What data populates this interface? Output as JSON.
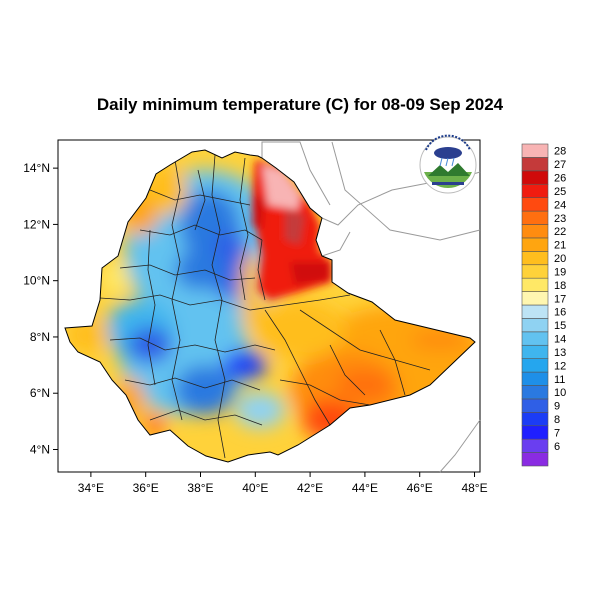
{
  "title": "Daily minimum temperature (C) for 08-09 Sep 2024",
  "x_ticks": [
    {
      "lon": 34,
      "label": "34°E"
    },
    {
      "lon": 36,
      "label": "36°E"
    },
    {
      "lon": 38,
      "label": "38°E"
    },
    {
      "lon": 40,
      "label": "40°E"
    },
    {
      "lon": 42,
      "label": "42°E"
    },
    {
      "lon": 44,
      "label": "44°E"
    },
    {
      "lon": 46,
      "label": "46°E"
    },
    {
      "lon": 48,
      "label": "48°E"
    }
  ],
  "y_ticks": [
    {
      "lat": 14,
      "label": "14°N"
    },
    {
      "lat": 12,
      "label": "12°N"
    },
    {
      "lat": 10,
      "label": "10°N"
    },
    {
      "lat": 8,
      "label": "8°N"
    },
    {
      "lat": 6,
      "label": "6°N"
    },
    {
      "lat": 4,
      "label": "4°N"
    }
  ],
  "extent": {
    "lon_min": 32.8,
    "lon_max": 48.2,
    "lat_min": 3.2,
    "lat_max": 15.0
  },
  "colorbar": {
    "levels": [
      {
        "label": "",
        "color": "#8a2be2"
      },
      {
        "label": "6",
        "color": "#6a3ef0"
      },
      {
        "label": "7",
        "color": "#1f1fff"
      },
      {
        "label": "8",
        "color": "#1b3cf5"
      },
      {
        "label": "9",
        "color": "#2f5fe6"
      },
      {
        "label": "10",
        "color": "#2a79e0"
      },
      {
        "label": "11",
        "color": "#1e8fe8"
      },
      {
        "label": "12",
        "color": "#25a6ee"
      },
      {
        "label": "13",
        "color": "#3fb5ee"
      },
      {
        "label": "14",
        "color": "#62c2f0"
      },
      {
        "label": "15",
        "color": "#8fd2f2"
      },
      {
        "label": "16",
        "color": "#bde3f5"
      },
      {
        "label": "17",
        "color": "#fff6b0"
      },
      {
        "label": "18",
        "color": "#ffe866"
      },
      {
        "label": "19",
        "color": "#ffd23a"
      },
      {
        "label": "20",
        "color": "#ffbe1e"
      },
      {
        "label": "21",
        "color": "#ffa510"
      },
      {
        "label": "22",
        "color": "#ff8c10"
      },
      {
        "label": "23",
        "color": "#ff6f10"
      },
      {
        "label": "24",
        "color": "#ff4a10"
      },
      {
        "label": "25",
        "color": "#f01c10"
      },
      {
        "label": "26",
        "color": "#d00a0a"
      },
      {
        "label": "27",
        "color": "#c43a3a"
      },
      {
        "label": "28",
        "color": "#f8b4b4"
      }
    ]
  }
}
